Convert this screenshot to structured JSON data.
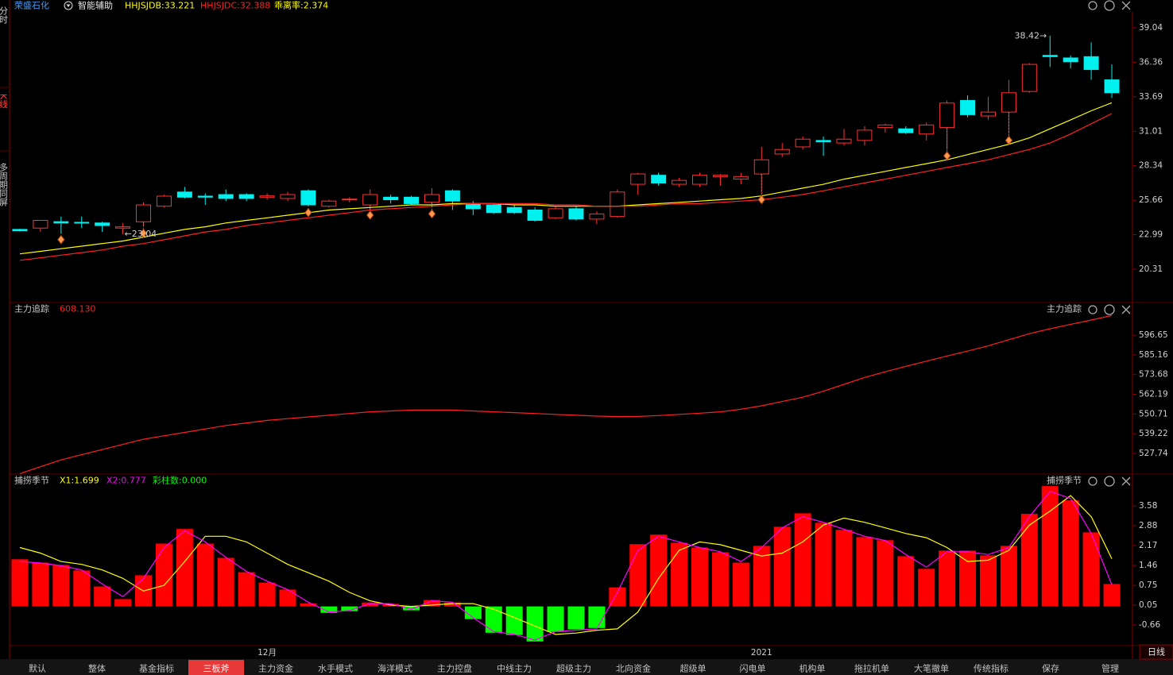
{
  "header": {
    "stock": "荣盛石化",
    "indicator": "智能辅助",
    "items": [
      "乖离率:2.374"
    ]
  },
  "side_tabs": [
    "分时",
    "K线",
    "多周期同屏"
  ],
  "tabs": [
    {
      "label": "默认",
      "active": false
    },
    {
      "label": "整体",
      "active": false
    },
    {
      "label": "基金指标",
      "active": false
    },
    {
      "label": "三板斧",
      "active": true
    },
    {
      "label": "主力资金",
      "active": false
    },
    {
      "label": "水手模式",
      "active": false
    },
    {
      "label": "海洋模式",
      "active": false
    },
    {
      "label": "主力控盘",
      "active": false
    },
    {
      "label": "中线主力",
      "active": false
    },
    {
      "label": "超级主力",
      "active": false
    },
    {
      "label": "北向资金",
      "active": false
    },
    {
      "label": "超级单",
      "active": false
    },
    {
      "label": "闪电单",
      "active": false
    },
    {
      "label": "机构单",
      "active": false
    },
    {
      "label": "拖拉机单",
      "active": false
    },
    {
      "label": "大笔撤单",
      "active": false
    },
    {
      "label": "传统指标",
      "active": false
    },
    {
      "label": "保存",
      "active": false
    },
    {
      "label": "管理",
      "active": false
    }
  ],
  "period": "日线",
  "chart_data": [
    {
      "type": "candlestick",
      "categories": [
        null,
        null,
        null,
        null,
        null,
        null,
        null,
        null,
        null,
        null,
        null,
        null,
        "12月",
        null,
        null,
        null,
        null,
        null,
        null,
        null,
        null,
        null,
        null,
        null,
        null,
        null,
        null,
        null,
        null,
        null,
        null,
        null,
        null,
        null,
        null,
        null,
        "2021",
        null,
        null,
        null,
        null,
        null,
        null,
        null,
        null,
        null,
        null,
        null,
        null,
        null,
        null,
        null,
        null,
        null
      ],
      "open": [
        23.4,
        23.5,
        24.0,
        23.95,
        23.9,
        23.5,
        23.99,
        25.2,
        26.3,
        25.98,
        26.1,
        26.1,
        25.9,
        25.8,
        26.4,
        25.2,
        25.7,
        25.3,
        25.9,
        25.9,
        25.5,
        26.4,
        25.4,
        25.3,
        25.1,
        24.9,
        24.3,
        25.0,
        24.2,
        24.4,
        26.9,
        27.6,
        26.9,
        26.9,
        27.5,
        27.3,
        27.7,
        29.25,
        29.8,
        30.3,
        30.1,
        30.3,
        31.3,
        31.2,
        30.8,
        31.3,
        33.4,
        32.2,
        32.5,
        34.1,
        36.9,
        36.7,
        36.8,
        35.0
      ],
      "high": [
        23.45,
        24.1,
        24.4,
        24.4,
        24.0,
        23.9,
        25.5,
        26.1,
        26.7,
        26.2,
        26.5,
        26.2,
        26.2,
        26.3,
        26.5,
        25.7,
        25.9,
        26.5,
        26.1,
        26.0,
        26.6,
        26.5,
        25.6,
        25.4,
        25.3,
        25.1,
        25.2,
        25.2,
        24.8,
        26.5,
        27.8,
        27.8,
        27.4,
        27.8,
        27.7,
        27.8,
        29.8,
        30.1,
        30.6,
        30.6,
        31.2,
        31.4,
        31.6,
        31.4,
        31.7,
        33.4,
        33.8,
        33.7,
        35.0,
        36.3,
        38.42,
        36.9,
        37.9,
        36.2
      ],
      "low": [
        23.25,
        23.2,
        23.1,
        23.5,
        23.2,
        23.04,
        23.6,
        25.1,
        25.8,
        25.3,
        25.6,
        25.6,
        25.7,
        25.6,
        25.2,
        25.1,
        25.5,
        25.0,
        25.4,
        25.3,
        25.1,
        24.9,
        24.5,
        24.6,
        24.6,
        24.0,
        24.2,
        24.1,
        23.8,
        24.3,
        26.1,
        26.8,
        26.7,
        26.7,
        26.8,
        26.9,
        26.2,
        29.0,
        29.6,
        29.1,
        29.9,
        29.9,
        30.9,
        30.8,
        30.3,
        29.6,
        32.1,
        31.9,
        30.8,
        34.0,
        36.0,
        35.9,
        35.0,
        33.6
      ],
      "close": [
        23.3,
        24.1,
        23.9,
        23.9,
        23.7,
        23.6,
        25.3,
        25.98,
        25.9,
        25.9,
        25.8,
        25.8,
        26.0,
        26.1,
        25.3,
        25.6,
        25.75,
        26.1,
        25.7,
        25.4,
        26.1,
        25.6,
        25.0,
        24.7,
        24.7,
        24.1,
        25.0,
        24.2,
        24.6,
        26.3,
        27.7,
        27.0,
        27.2,
        27.6,
        27.6,
        27.5,
        28.8,
        29.6,
        30.4,
        30.2,
        30.4,
        31.1,
        31.5,
        30.9,
        31.5,
        33.2,
        32.3,
        32.5,
        34.0,
        36.2,
        36.8,
        36.4,
        35.8,
        34.0
      ],
      "up_color": "#ff3030",
      "down_color": "#00f0f0",
      "series": [
        {
          "name": "HHJSJDB:33.221",
          "color": "#ffff00",
          "values": [
            21.5,
            21.7,
            21.9,
            22.1,
            22.3,
            22.5,
            22.8,
            23.1,
            23.4,
            23.6,
            23.9,
            24.1,
            24.3,
            24.5,
            24.7,
            24.9,
            25.0,
            25.1,
            25.2,
            25.3,
            25.3,
            25.4,
            25.4,
            25.4,
            25.3,
            25.3,
            25.2,
            25.2,
            25.2,
            25.2,
            25.3,
            25.4,
            25.5,
            25.6,
            25.7,
            25.8,
            26.0,
            26.3,
            26.6,
            26.9,
            27.3,
            27.6,
            27.9,
            28.2,
            28.5,
            28.8,
            29.2,
            29.6,
            30.0,
            30.5,
            31.2,
            31.9,
            32.6,
            33.221
          ]
        },
        {
          "name": "HHJSJDC:32.388",
          "color": "#ff2020",
          "values": [
            21.0,
            21.2,
            21.4,
            21.6,
            21.8,
            22.1,
            22.3,
            22.6,
            22.9,
            23.2,
            23.4,
            23.7,
            23.9,
            24.1,
            24.3,
            24.5,
            24.7,
            24.9,
            25.0,
            25.1,
            25.2,
            25.3,
            25.4,
            25.4,
            25.4,
            25.4,
            25.3,
            25.3,
            25.2,
            25.2,
            25.2,
            25.3,
            25.4,
            25.4,
            25.5,
            25.6,
            25.7,
            25.9,
            26.1,
            26.4,
            26.7,
            27.0,
            27.3,
            27.6,
            27.9,
            28.2,
            28.5,
            28.8,
            29.2,
            29.6,
            30.1,
            30.8,
            31.6,
            32.388
          ]
        }
      ],
      "signals": [
        2,
        6,
        14,
        17,
        20,
        36,
        45,
        48
      ],
      "annotations": [
        "38.42→",
        "←23.04"
      ],
      "ylim": [
        17.91,
        40.27
      ],
      "yticks": [
        39.04,
        36.36,
        33.69,
        31.01,
        28.34,
        25.66,
        22.99,
        20.31
      ]
    },
    {
      "type": "line",
      "title": "主力追踪",
      "readout": "608.130",
      "series": [
        {
          "color": "#ff2020",
          "values": [
            516,
            520,
            524,
            527,
            530,
            533,
            536,
            538,
            540,
            542,
            544,
            545.5,
            547,
            548,
            549,
            550,
            551,
            552,
            552.5,
            553,
            553,
            553,
            552.5,
            552,
            551.5,
            551,
            550.5,
            550,
            549.5,
            549.2,
            549.3,
            549.8,
            550.5,
            551.2,
            552,
            553.5,
            555.5,
            558,
            560.5,
            564,
            568,
            572,
            575.3,
            578.5,
            581.5,
            584.5,
            587.4,
            590.5,
            594,
            597.5,
            600.4,
            603,
            605.5,
            608.13
          ]
        }
      ],
      "ylim": [
        515.7,
        615.2
      ],
      "yticks": [
        596.65,
        585.16,
        573.68,
        562.19,
        550.71,
        539.22,
        527.74
      ]
    },
    {
      "type": "bar",
      "title": "捕捞季节",
      "readout": "彩柱数:0.000",
      "values": [
        1.68,
        1.56,
        1.48,
        1.28,
        0.71,
        0.26,
        1.11,
        2.24,
        2.76,
        2.24,
        1.73,
        1.22,
        0.85,
        0.6,
        0.11,
        -0.23,
        -0.17,
        0.14,
        0.09,
        -0.14,
        0.23,
        0.14,
        -0.45,
        -0.94,
        -1.02,
        -1.25,
        -0.91,
        -0.82,
        -0.77,
        0.68,
        2.22,
        2.56,
        2.27,
        2.1,
        1.93,
        1.56,
        2.16,
        2.84,
        3.32,
        2.98,
        2.73,
        2.47,
        2.36,
        1.79,
        1.34,
        1.99,
        1.99,
        1.82,
        2.16,
        3.3,
        4.29,
        3.78,
        2.64,
        0.8
      ],
      "up_color": "#ff0000",
      "down_color": "#00ff00",
      "series": [
        {
          "name": "X1:1.699",
          "color": "#ffff00",
          "values": [
            2.1,
            1.9,
            1.6,
            1.5,
            1.3,
            1.0,
            0.55,
            0.75,
            1.6,
            2.5,
            2.5,
            2.3,
            1.9,
            1.5,
            1.2,
            0.9,
            0.5,
            0.2,
            0.05,
            0.0,
            0.05,
            0.1,
            0.1,
            -0.1,
            -0.4,
            -0.7,
            -1.0,
            -0.95,
            -0.85,
            -0.8,
            -0.2,
            1.0,
            2.0,
            2.3,
            2.2,
            2.0,
            1.8,
            1.9,
            2.3,
            2.9,
            3.15,
            3.0,
            2.8,
            2.6,
            2.45,
            2.1,
            1.6,
            1.65,
            2.0,
            2.9,
            3.4,
            3.95,
            3.2,
            1.699
          ]
        },
        {
          "name": "X2:0.777",
          "color": "#ff00ff",
          "values": [
            1.6,
            1.55,
            1.45,
            1.3,
            0.8,
            0.35,
            1.0,
            2.1,
            2.7,
            2.3,
            1.75,
            1.25,
            0.9,
            0.6,
            0.15,
            -0.2,
            -0.15,
            0.1,
            0.1,
            -0.1,
            0.2,
            0.15,
            -0.4,
            -0.9,
            -1.0,
            -1.2,
            -0.9,
            -0.85,
            -0.8,
            0.5,
            2.0,
            2.5,
            2.3,
            2.1,
            1.95,
            1.6,
            2.1,
            2.8,
            3.2,
            3.0,
            2.75,
            2.5,
            2.35,
            1.85,
            1.4,
            1.95,
            1.95,
            1.85,
            2.1,
            3.2,
            4.1,
            3.85,
            2.6,
            0.777
          ]
        }
      ],
      "ylim": [
        -1.37,
        4.69
      ],
      "yticks": [
        3.58,
        2.88,
        2.17,
        1.46,
        0.75,
        0.05,
        -0.66
      ]
    }
  ]
}
